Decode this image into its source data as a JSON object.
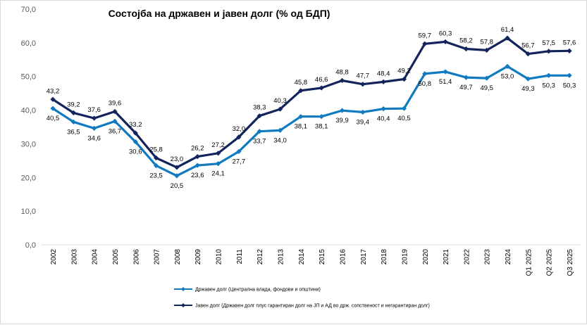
{
  "chart_data": {
    "type": "line",
    "title": "Состојба на државен и јавен долг (% од БДП)",
    "categories": [
      "2002",
      "2003",
      "2004",
      "2005",
      "2006",
      "2007",
      "2008",
      "2009",
      "2010",
      "2011",
      "2012",
      "2013",
      "2014",
      "2015",
      "2016",
      "2017",
      "2018",
      "2019",
      "2020",
      "2021",
      "2022",
      "2023",
      "2024",
      "Q1 2025",
      "Q2 2025",
      "Q3 2025"
    ],
    "ylim": [
      0,
      70
    ],
    "yticks": [
      "0,0",
      "10,0",
      "20,0",
      "30,0",
      "40,0",
      "50,0",
      "60,0",
      "70,0"
    ],
    "grid": false,
    "legend_position": "bottom",
    "series": [
      {
        "name": "Државен долг (Централна влада, фондови и општини)",
        "color": "#0f7ac0",
        "values": [
          40.5,
          36.5,
          34.6,
          36.7,
          30.6,
          23.5,
          20.5,
          23.6,
          24.1,
          27.7,
          33.7,
          34.0,
          38.1,
          38.1,
          39.9,
          39.4,
          40.4,
          40.5,
          50.8,
          51.4,
          49.7,
          49.5,
          53.0,
          49.3,
          50.3,
          50.3
        ],
        "labels": [
          "40,5",
          "36,5",
          "34,6",
          "36,7",
          "30,6",
          "23,5",
          "20,5",
          "23,6",
          "24,1",
          "27,7",
          "33,7",
          "34,0",
          "38,1",
          "38,1",
          "39,9",
          "39,4",
          "40,4",
          "40,5",
          "50,8",
          "51,4",
          "49,7",
          "49,5",
          "53,0",
          "49,3",
          "50,3",
          "50,3"
        ]
      },
      {
        "name": "Јавен долг (Државен долг плус гарантиран долг на ЈП и АД во држ. сопственост и негарантиран долг)",
        "color": "#13245c",
        "values": [
          43.2,
          39.2,
          37.6,
          39.6,
          33.2,
          25.8,
          23.0,
          26.2,
          27.2,
          32.0,
          38.3,
          40.3,
          45.8,
          46.6,
          48.8,
          47.7,
          48.4,
          49.2,
          59.7,
          60.3,
          58.2,
          57.8,
          61.4,
          56.7,
          57.5,
          57.6
        ],
        "labels": [
          "43,2",
          "39,2",
          "37,6",
          "39,6",
          "33,2",
          "25,8",
          "23,0",
          "26,2",
          "27,2",
          "32,0",
          "38,3",
          "40,3",
          "45,8",
          "46,6",
          "48,8",
          "47,7",
          "48,4",
          "49,2",
          "59,7",
          "60,3",
          "58,2",
          "57,8",
          "61,4",
          "56,7",
          "57,5",
          "57,6"
        ]
      }
    ]
  }
}
